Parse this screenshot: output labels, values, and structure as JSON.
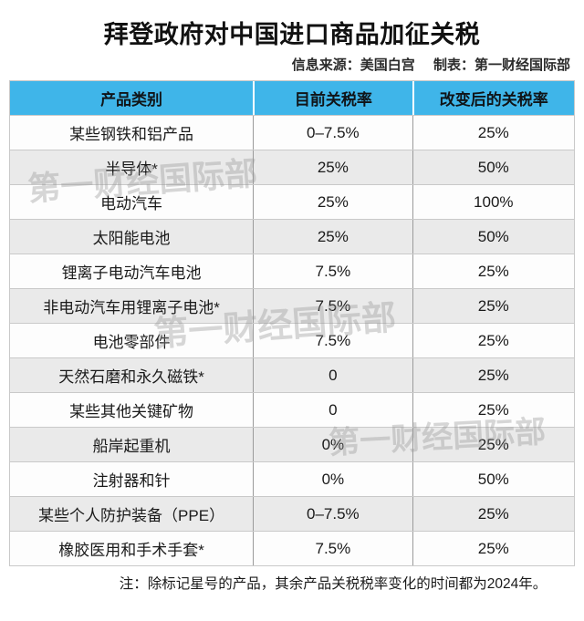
{
  "page": {
    "title": "拜登政府对中国进口商品加征关税",
    "source_label": "信息来源：美国白宫",
    "credit_label": "制表：第一财经国际部",
    "note": "注：除标记星号的产品，其余产品关税税率变化的时间都为2024年。"
  },
  "watermark": {
    "text": "第一财经国际部"
  },
  "colors": {
    "header_bg": "#3fb5e9",
    "row_bg": "#fdfdfd",
    "row_alt_bg": "#eaeaea",
    "row_separator": "#c9c9c9",
    "column_divider": "#9b9b9b",
    "header_divider": "#ffffff",
    "text": "#1a1a1a",
    "watermark": "rgba(150,150,150,0.38)"
  },
  "chart_data": {
    "type": "table",
    "title": "拜登政府对中国进口商品加征关税",
    "columns": [
      "产品类别",
      "目前关税率",
      "改变后的关税率"
    ],
    "rows": [
      [
        "某些钢铁和铝产品",
        "0–7.5%",
        "25%"
      ],
      [
        "半导体*",
        "25%",
        "50%"
      ],
      [
        "电动汽车",
        "25%",
        "100%"
      ],
      [
        "太阳能电池",
        "25%",
        "50%"
      ],
      [
        "锂离子电动汽车电池",
        "7.5%",
        "25%"
      ],
      [
        "非电动汽车用锂离子电池*",
        "7.5%",
        "25%"
      ],
      [
        "电池零部件",
        "7.5%",
        "25%"
      ],
      [
        "天然石磨和永久磁铁*",
        "0",
        "25%"
      ],
      [
        "某些其他关键矿物",
        "0",
        "25%"
      ],
      [
        "船岸起重机",
        "0%",
        "25%"
      ],
      [
        "注射器和针",
        "0%",
        "50%"
      ],
      [
        "某些个人防护装备（PPE）",
        "0–7.5%",
        "25%"
      ],
      [
        "橡胶医用和手术手套*",
        "7.5%",
        "25%"
      ]
    ]
  }
}
